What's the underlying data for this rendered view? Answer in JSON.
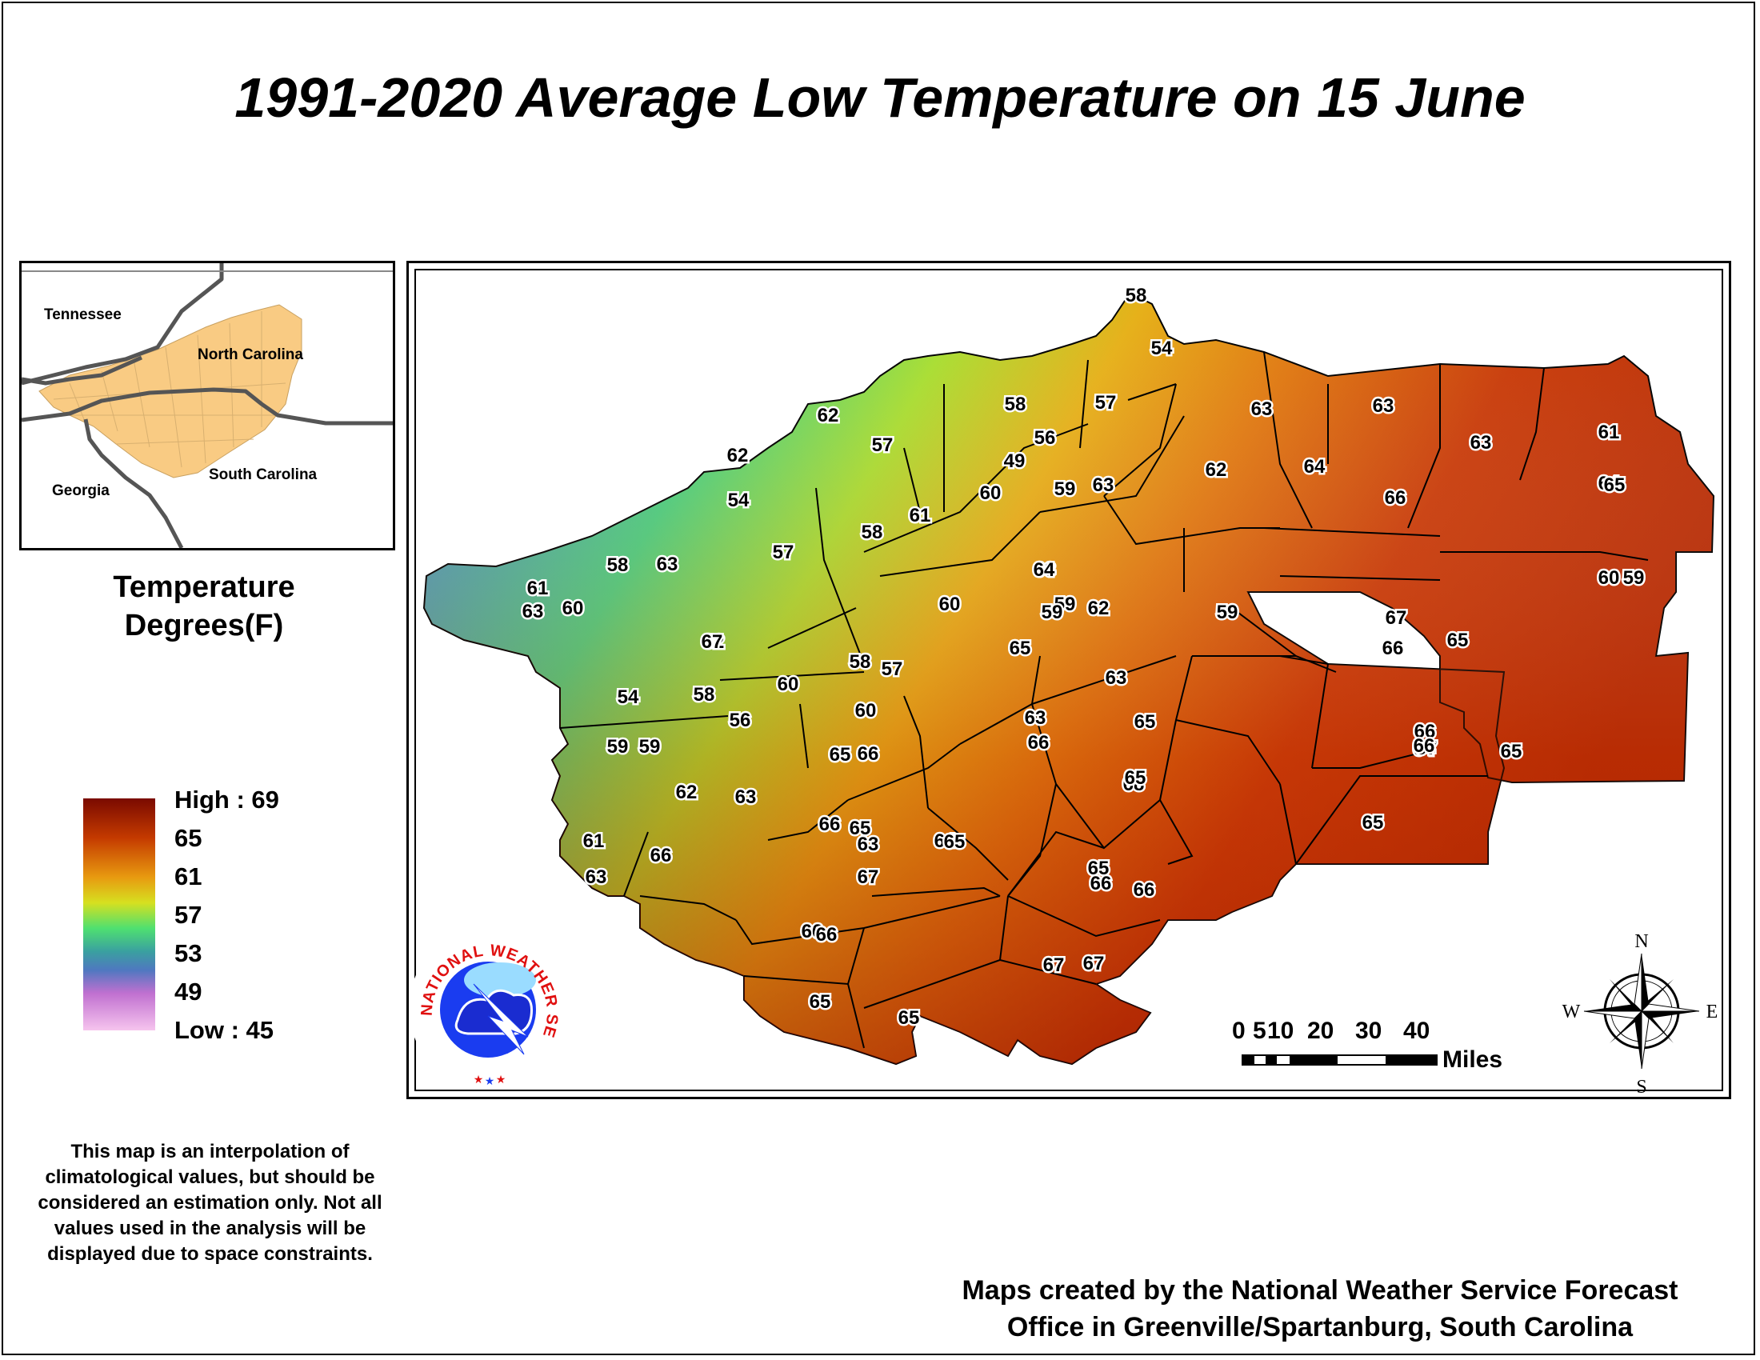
{
  "title": "1991-2020 Average Low Temperature on 15 June",
  "inset": {
    "labels": {
      "tennessee": "Tennessee",
      "north_carolina": "North Carolina",
      "georgia": "Georgia",
      "south_carolina": "South Carolina"
    }
  },
  "legend": {
    "title_line1": "Temperature",
    "title_line2": "Degrees(F)",
    "high": "High : 69",
    "low": "Low : 45",
    "ticks": [
      "65",
      "61",
      "57",
      "53",
      "49"
    ],
    "colors": {
      "high": "#7a0a00",
      "mid_high": "#e89a10",
      "mid": "#4fe070",
      "mid_low": "#3aa0a0",
      "low": "#f6c4ee"
    }
  },
  "note": "This map is an interpolation of climatological values, but should be considered an estimation only. Not all values used in the analysis will be displayed due to space constraints.",
  "credits": {
    "line1": "Maps created by the National Weather Service Forecast",
    "line2": "Office in Greenville/Spartanburg, South Carolina"
  },
  "scale": {
    "ticks": [
      "0",
      "5",
      "10",
      "20",
      "30",
      "40"
    ],
    "units": "Miles"
  },
  "compass": {
    "n": "N",
    "s": "S",
    "e": "E",
    "w": "W"
  },
  "logo": {
    "text": "NATIONAL WEATHER SERVICE"
  },
  "temperature_values": [
    "58",
    "54",
    "57",
    "63",
    "63",
    "63",
    "61",
    "62",
    "57",
    "58",
    "56",
    "49",
    "60",
    "59",
    "63",
    "62",
    "64",
    "66",
    "64",
    "65",
    "62",
    "54",
    "61",
    "58",
    "57",
    "63",
    "64",
    "59",
    "59",
    "60",
    "59",
    "61",
    "60",
    "58",
    "63",
    "63",
    "62",
    "67",
    "67",
    "66",
    "65",
    "60",
    "58",
    "65",
    "63",
    "59",
    "60",
    "57",
    "54",
    "58",
    "60",
    "63",
    "62",
    "66",
    "65",
    "56",
    "65",
    "66",
    "68",
    "65",
    "66",
    "64",
    "67",
    "65",
    "66",
    "59",
    "59",
    "62",
    "63",
    "66",
    "65",
    "63",
    "64",
    "65",
    "65",
    "61",
    "66",
    "67",
    "63",
    "66",
    "66",
    "66",
    "66",
    "65",
    "67",
    "65",
    "67",
    "65"
  ]
}
